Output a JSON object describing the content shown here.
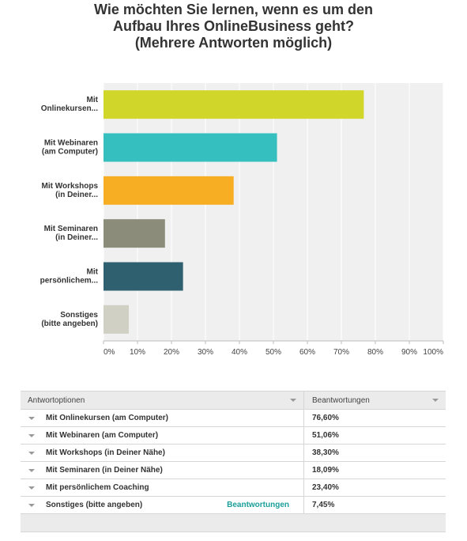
{
  "title_lines": [
    "Wie möchten Sie lernen, wenn es um den",
    "Aufbau Ihres OnlineBusiness geht?",
    "(Mehrere Antworten möglich)"
  ],
  "chart_data": {
    "type": "bar",
    "orientation": "horizontal",
    "categories": [
      [
        "Mit",
        "Onlinekursen..."
      ],
      [
        "Mit Webinaren",
        "(am Computer)"
      ],
      [
        "Mit Workshops",
        "(in Deiner..."
      ],
      [
        "Mit Seminaren",
        "(in Deiner..."
      ],
      [
        "Mit",
        "persönlichem..."
      ],
      [
        "Sonstiges",
        "(bitte angeben)"
      ]
    ],
    "values": [
      76.6,
      51.06,
      38.3,
      18.09,
      23.4,
      7.45
    ],
    "colors": [
      "#d1d62b",
      "#36bfbf",
      "#f7ae23",
      "#8c8c7a",
      "#2e6070",
      "#d1d0c4"
    ],
    "xlim": [
      0,
      100
    ],
    "xticks": [
      "0%",
      "10%",
      "20%",
      "30%",
      "40%",
      "50%",
      "60%",
      "70%",
      "80%",
      "90%",
      "100%"
    ],
    "grid": true,
    "plot_background": "#f0f0f0"
  },
  "table": {
    "col_answer": "Antwortoptionen",
    "col_responses": "Beantwortungen",
    "rows": [
      {
        "label": "Mit Onlinekursen (am Computer)",
        "value": "76,60%"
      },
      {
        "label": "Mit Webinaren (am Computer)",
        "value": "51,06%"
      },
      {
        "label": "Mit Workshops (in Deiner Nähe)",
        "value": "38,30%"
      },
      {
        "label": "Mit Seminaren (in Deiner Nähe)",
        "value": "18,09%"
      },
      {
        "label": "Mit persönlichem Coaching",
        "value": "23,40%"
      },
      {
        "label": "Sonstiges (bitte angeben)",
        "value": "7,45%",
        "link": "Beantwortungen"
      }
    ]
  }
}
